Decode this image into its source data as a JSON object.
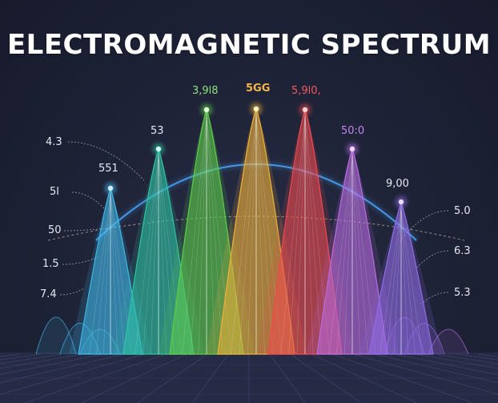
{
  "title": "ELECTROMAGNETIC SPECTRUM",
  "peaks": [
    {
      "label": "",
      "color": "#3fb7e8",
      "dot": "#cfefff"
    },
    {
      "label": "53",
      "color": "#2fc3a2",
      "dot": "#c9fff0"
    },
    {
      "label": "3,9l8",
      "color": "#5fce4a",
      "dot": "#e3ffd6"
    },
    {
      "label": "5GG",
      "color": "#f0b13a",
      "dot": "#fff1c7"
    },
    {
      "label": "5,9l0,",
      "color": "#ef4a4e",
      "dot": "#ffd2d2"
    },
    {
      "label": "50:0",
      "color": "#b86be0",
      "dot": "#f0d6ff"
    },
    {
      "label": "9,00",
      "color": "#8f6ce6",
      "dot": "#e6dcff"
    }
  ],
  "left_labels": [
    "4.3",
    "551",
    "5l",
    "50",
    "1.5",
    "7.4"
  ],
  "right_labels": [
    "5.0",
    "6.3",
    "5.3"
  ],
  "colors": {
    "background": "#1b1f33",
    "arc": "#4aa8ff",
    "grid": "#3a3f5c"
  }
}
